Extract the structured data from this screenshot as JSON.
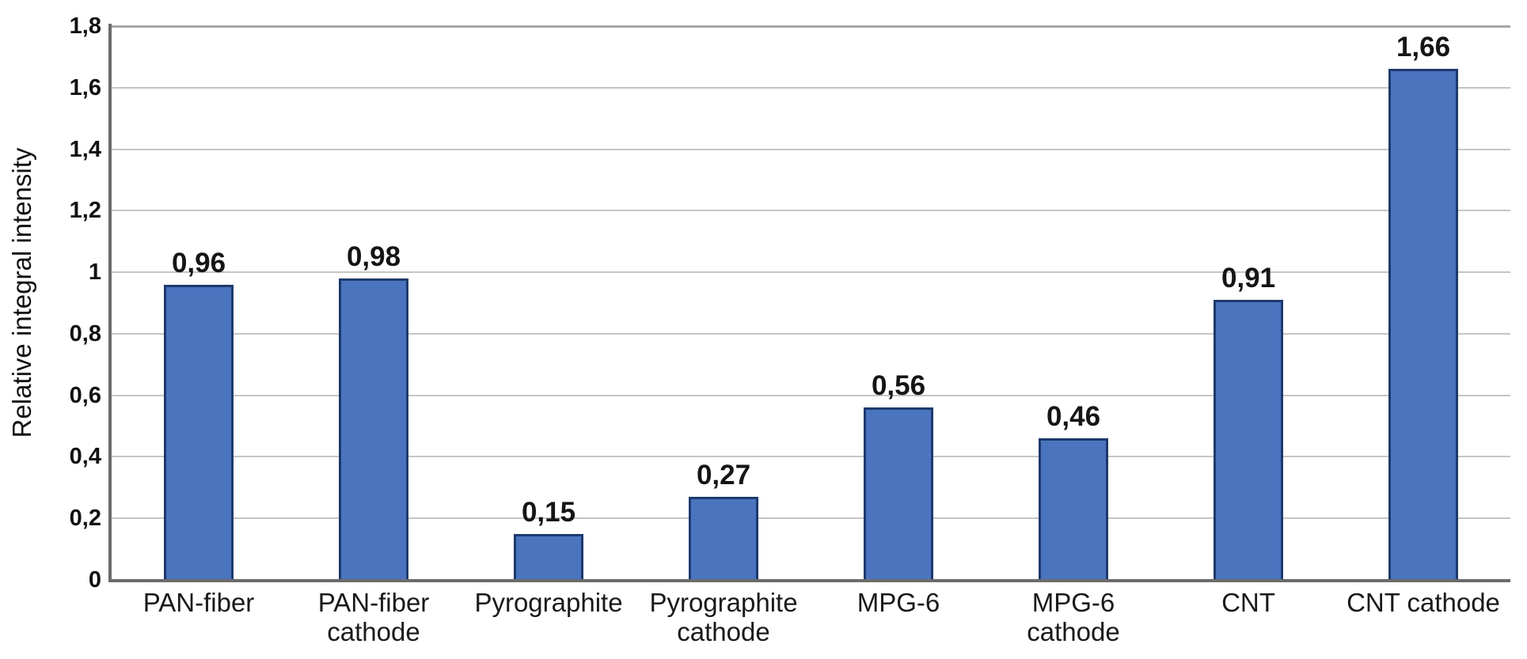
{
  "chart_data": {
    "type": "bar",
    "title": "",
    "ylabel": "Relative integral intensity",
    "xlabel": "",
    "categories": [
      "PAN-fiber",
      "PAN-fiber cathode",
      "Pyrographite",
      "Pyrographite cathode",
      "MPG-6",
      "MPG-6 cathode",
      "CNT",
      "CNT cathode"
    ],
    "category_label_lines": [
      [
        "PAN-fiber"
      ],
      [
        "PAN-fiber",
        "cathode"
      ],
      [
        "Pyrographite"
      ],
      [
        "Pyrographite",
        "cathode"
      ],
      [
        "MPG-6"
      ],
      [
        "MPG-6",
        "cathode"
      ],
      [
        "CNT"
      ],
      [
        "CNT cathode"
      ]
    ],
    "values": [
      0.96,
      0.98,
      0.15,
      0.27,
      0.56,
      0.46,
      0.91,
      1.66
    ],
    "value_labels": [
      "0,96",
      "0,98",
      "0,15",
      "0,27",
      "0,56",
      "0,46",
      "0,91",
      "1,66"
    ],
    "decimal_separator": ",",
    "ylim": [
      0,
      1.8
    ],
    "yticks": {
      "values": [
        0,
        0.2,
        0.4,
        0.6,
        0.8,
        1,
        1.2,
        1.4,
        1.6,
        1.8
      ],
      "labels": [
        "0",
        "0,2",
        "0,4",
        "0,6",
        "0,8",
        "1",
        "1,2",
        "1,4",
        "1,6",
        "1,8"
      ]
    },
    "grid": "horizontal",
    "legend": "none",
    "colors": {
      "bar_fill": "#4a74be",
      "bar_border": "#1d3a6e",
      "gridline": "#c5c5c5",
      "gridline_top": "#a6a6a6",
      "axis": "#6b6b6b",
      "text": "#111111"
    }
  }
}
